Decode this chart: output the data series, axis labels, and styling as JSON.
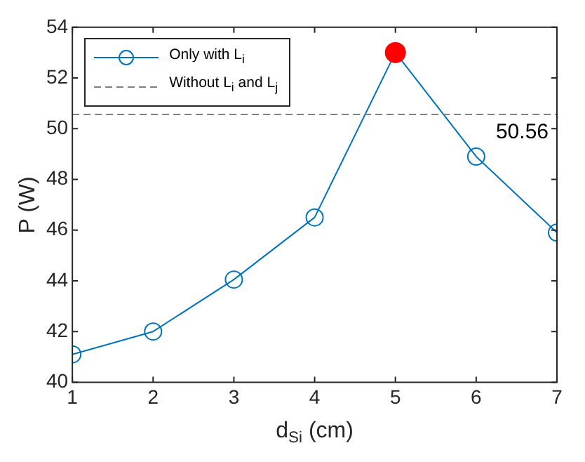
{
  "chart_data": {
    "type": "line",
    "xlabel": "d$_{Si}$ (cm)",
    "ylabel": "P (W)",
    "x": [
      1,
      2,
      3,
      4,
      5,
      6,
      7
    ],
    "series": [
      {
        "name": "Only with L$_{i}$",
        "color": "#0072bd",
        "colors": [
          "#0072bd",
          "#0072bd",
          "#0072bd",
          "#0072bd",
          "#ff0000",
          "#0072bd",
          "#0072bd"
        ],
        "values": [
          41.1,
          42.0,
          44.05,
          46.5,
          53.0,
          48.9,
          45.9
        ]
      }
    ],
    "ref_lines": [
      {
        "axis": "y",
        "value": 50.56,
        "label": "Without L$_{i}$ and L$_{j}$",
        "color": "#808080",
        "line_style": "dashed"
      }
    ],
    "annotations": [
      {
        "text": "50.56",
        "x": 7,
        "y": 50.56
      }
    ],
    "xlim": [
      1,
      7
    ],
    "xticks": [
      1,
      2,
      3,
      4,
      5,
      6,
      7
    ],
    "ylim": [
      40,
      54
    ],
    "yticks": [
      40,
      42,
      44,
      46,
      48,
      50,
      52,
      54
    ],
    "grid": false,
    "legend": "top left",
    "marker": "circle",
    "line_style": "solid"
  }
}
